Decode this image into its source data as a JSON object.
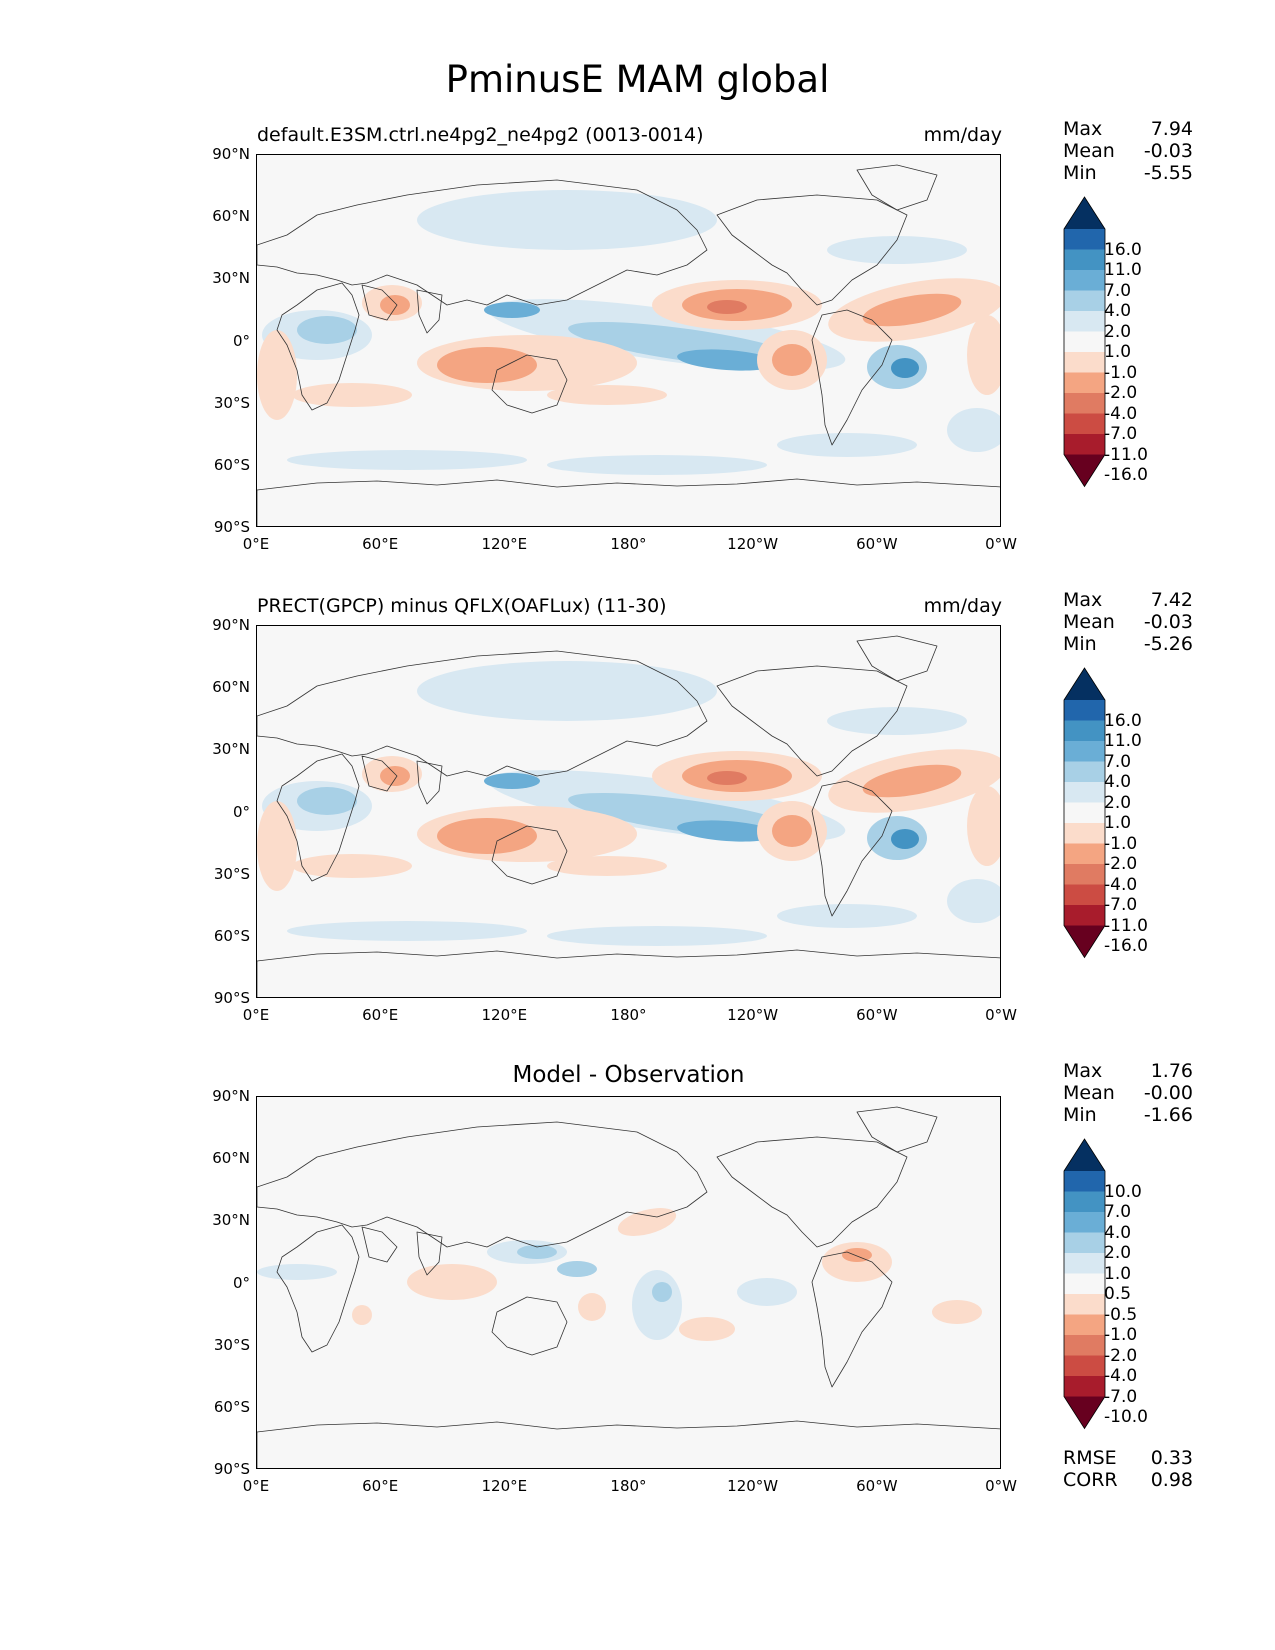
{
  "title": "PminusE MAM global",
  "lat_ticks": [
    "90°N",
    "60°N",
    "30°N",
    "0°",
    "30°S",
    "60°S",
    "90°S"
  ],
  "lon_ticks": [
    "0°E",
    "60°E",
    "120°E",
    "180°",
    "120°W",
    "60°W",
    "0°W"
  ],
  "panels": [
    {
      "title_left": "default.E3SM.ctrl.ne4pg2_ne4pg2 (0013-0014)",
      "units": "mm/day",
      "title_center": "",
      "stats": {
        "max_label": "Max",
        "max": "7.94",
        "mean_label": "Mean",
        "mean": "-0.03",
        "min_label": "Min",
        "min": "-5.55"
      },
      "colorbar_levels": [
        "16.0",
        "11.0",
        "7.0",
        "4.0",
        "2.0",
        "1.0",
        "-1.0",
        "-2.0",
        "-4.0",
        "-7.0",
        "-11.0",
        "-16.0"
      ]
    },
    {
      "title_left": "PRECT(GPCP) minus QFLX(OAFLux) (11-30)",
      "units": "mm/day",
      "title_center": "",
      "stats": {
        "max_label": "Max",
        "max": "7.42",
        "mean_label": "Mean",
        "mean": "-0.03",
        "min_label": "Min",
        "min": "-5.26"
      },
      "colorbar_levels": [
        "16.0",
        "11.0",
        "7.0",
        "4.0",
        "2.0",
        "1.0",
        "-1.0",
        "-2.0",
        "-4.0",
        "-7.0",
        "-11.0",
        "-16.0"
      ]
    },
    {
      "title_left": "",
      "units": "",
      "title_center": "Model - Observation",
      "stats": {
        "max_label": "Max",
        "max": "1.76",
        "mean_label": "Mean",
        "mean": "-0.00",
        "min_label": "Min",
        "min": "-1.66"
      },
      "colorbar_levels": [
        "10.0",
        "7.0",
        "4.0",
        "2.0",
        "1.0",
        "0.5",
        "-0.5",
        "-1.0",
        "-2.0",
        "-4.0",
        "-7.0",
        "-10.0"
      ],
      "metrics": {
        "rmse_label": "RMSE",
        "rmse": "0.33",
        "corr_label": "CORR",
        "corr": "0.98"
      }
    }
  ],
  "colorbar_colors": [
    "#053061",
    "#2166ac",
    "#4393c3",
    "#6aaed6",
    "#a8d0e6",
    "#d8e8f2",
    "#f7f7f7",
    "#fbdccb",
    "#f4a582",
    "#e07b62",
    "#cc4c43",
    "#a81c2c",
    "#67001f"
  ]
}
